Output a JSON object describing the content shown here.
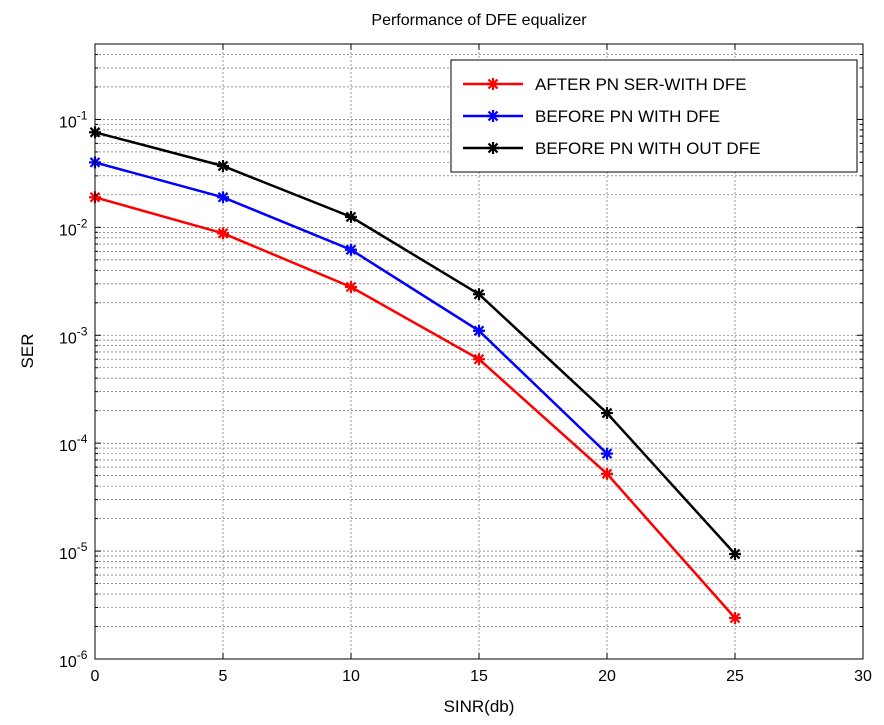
{
  "chart_data": {
    "type": "line",
    "title": "Performance of DFE equalizer",
    "xlabel": "SINR(db)",
    "ylabel": "SER",
    "xlim": [
      0,
      30
    ],
    "ylim": [
      1e-06,
      0.5
    ],
    "y_scale": "log",
    "x_ticks": [
      0,
      5,
      10,
      15,
      20,
      25,
      30
    ],
    "x_tick_labels": [
      "0",
      "5",
      "10",
      "15",
      "20",
      "25",
      "30"
    ],
    "y_tick_exponents": [
      "-6",
      "-5",
      "-4",
      "-3",
      "-2",
      "-1"
    ],
    "y_tick_base": "10",
    "grid": true,
    "grid_style": "dashed",
    "legend_position": "top-right",
    "series": [
      {
        "name": "AFTER PN SER-WITH DFE",
        "color": "#ff0000",
        "marker": "star",
        "x": [
          0,
          5,
          10,
          15,
          20,
          25
        ],
        "y": [
          0.019,
          0.0088,
          0.0028,
          0.0006,
          5.2e-05,
          2.4e-06
        ]
      },
      {
        "name": "BEFORE PN WITH DFE",
        "color": "#0000ff",
        "marker": "star",
        "x": [
          0,
          5,
          10,
          15,
          20
        ],
        "y": [
          0.04,
          0.019,
          0.0062,
          0.0011,
          8e-05
        ]
      },
      {
        "name": "BEFORE PN WITH OUT DFE",
        "color": "#000000",
        "marker": "star",
        "x": [
          0,
          5,
          10,
          15,
          20,
          25
        ],
        "y": [
          0.076,
          0.037,
          0.0125,
          0.0024,
          0.00019,
          9.4e-06
        ]
      }
    ]
  }
}
